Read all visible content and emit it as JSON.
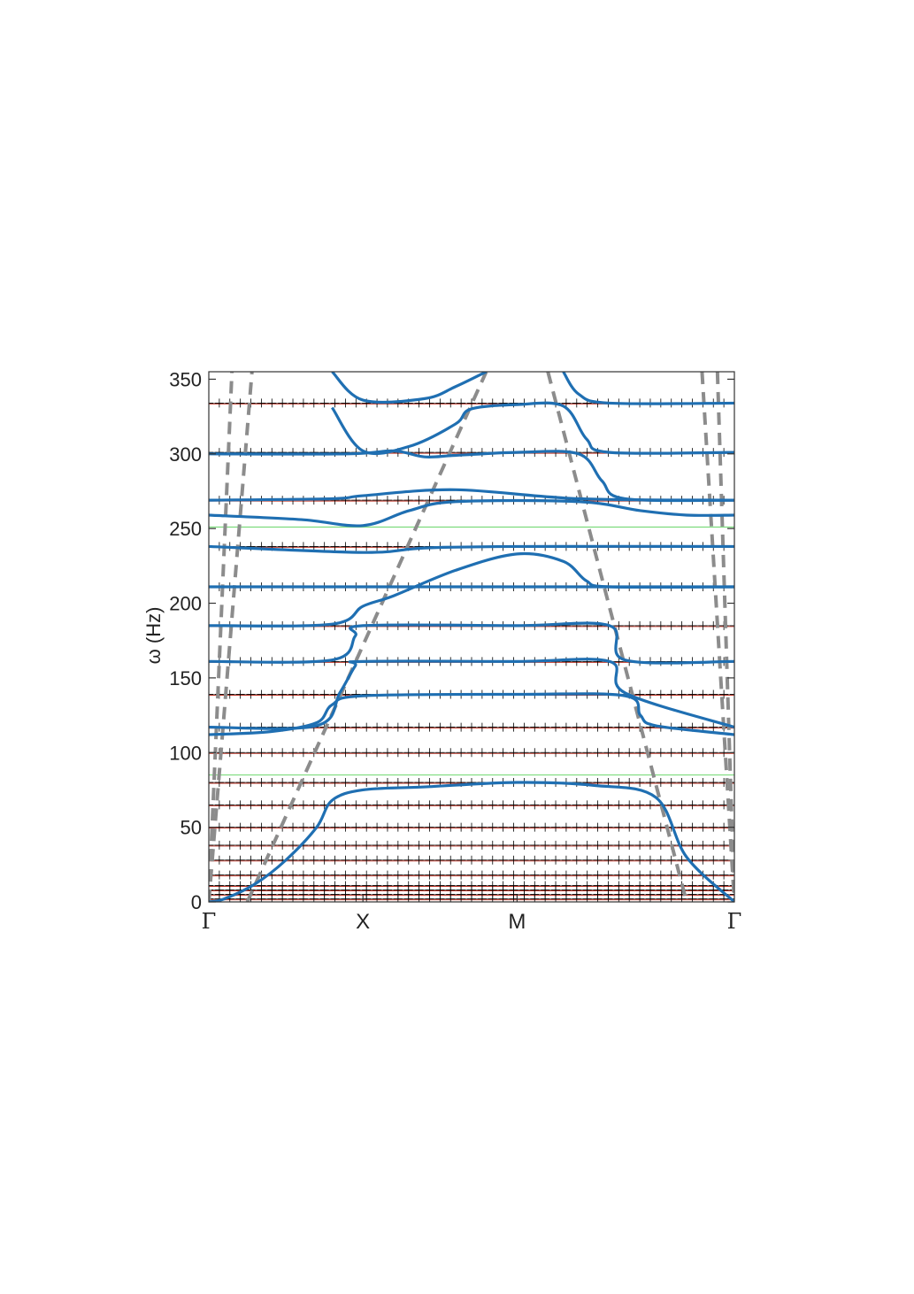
{
  "chart_data": {
    "type": "line",
    "title": "",
    "xlabel": "",
    "ylabel": "ω (Hz)",
    "ylim": [
      0,
      355
    ],
    "yticks": [
      0,
      50,
      100,
      150,
      200,
      250,
      300,
      350
    ],
    "x_path": {
      "points": [
        {
          "label": "Γ",
          "pos": 0.0
        },
        {
          "label": "X",
          "pos": 1.0
        },
        {
          "label": "M",
          "pos": 2.0
        },
        {
          "label": "Γ",
          "pos": 3.41
        }
      ],
      "range": [
        0,
        3.41
      ]
    },
    "colors": {
      "dispersion": "#1f6fb2",
      "flat_band": "#c0392b",
      "measured": "#000000",
      "asymptote": "#8c8c8c",
      "gap_edge": "#7ddc7d"
    },
    "flat_bands": [
      2,
      5,
      8,
      11,
      18,
      28,
      38,
      50,
      65,
      80,
      100,
      117,
      139,
      161,
      185,
      211,
      238,
      269,
      301,
      334
    ],
    "gap_edges": [
      85,
      251
    ],
    "series": [
      {
        "x": [
          0,
          0.1,
          0.3,
          0.5,
          0.7,
          0.8,
          1.0,
          1.4,
          2.0,
          2.5,
          2.9,
          3.1,
          3.41
        ],
        "y": [
          0,
          2,
          12,
          28,
          50,
          68,
          75,
          77,
          80,
          78,
          70,
          30,
          0
        ]
      },
      {
        "x": [
          0,
          0.4,
          0.7,
          0.8,
          1.0,
          2.0,
          2.7,
          2.8,
          2.9,
          3.41
        ],
        "y": [
          112,
          114,
          120,
          132,
          138,
          139,
          138,
          125,
          118,
          112
        ]
      },
      {
        "x": [
          0,
          0.7,
          0.85,
          0.95,
          1.0,
          2.0,
          2.6,
          2.7,
          3.41
        ],
        "y": [
          117,
          118,
          140,
          158,
          161,
          161,
          161,
          140,
          117
        ]
      },
      {
        "x": [
          0,
          0.8,
          0.95,
          1.0,
          2.0,
          2.6,
          2.7,
          3.41
        ],
        "y": [
          161,
          162,
          178,
          185,
          185,
          185,
          162,
          161
        ]
      },
      {
        "x": [
          0,
          0.8,
          1.0,
          1.2,
          1.6,
          2.0,
          2.3,
          2.45,
          2.6,
          3.41
        ],
        "y": [
          185,
          186,
          198,
          205,
          222,
          233,
          228,
          215,
          211,
          211
        ]
      },
      {
        "x": [
          0,
          1.0,
          2.0,
          3.41
        ],
        "y": [
          211,
          211,
          211,
          211
        ]
      },
      {
        "x": [
          0,
          1.0,
          1.4,
          2.0,
          3.41
        ],
        "y": [
          238,
          234,
          237,
          238,
          238
        ]
      },
      {
        "x": [
          0,
          0.6,
          1.0,
          1.3,
          1.6,
          2.4,
          2.8,
          3.1,
          3.41
        ],
        "y": [
          259,
          256,
          252,
          262,
          268,
          268,
          262,
          259,
          259
        ]
      },
      {
        "x": [
          0,
          0.8,
          1.0,
          1.6,
          2.4,
          3.41
        ],
        "y": [
          269,
          270,
          272,
          276,
          270,
          269
        ]
      },
      {
        "x": [
          0,
          0.9,
          1.2,
          1.4,
          1.6,
          2.0,
          2.4,
          2.55,
          2.7,
          3.41
        ],
        "y": [
          300,
          300,
          302,
          298,
          299,
          301,
          300,
          282,
          270,
          269
        ]
      },
      {
        "x": [
          0.8,
          1.0,
          1.3,
          1.6,
          1.7,
          2.0,
          2.3,
          2.45,
          2.6,
          3.41
        ],
        "y": [
          331,
          302,
          305,
          320,
          330,
          333,
          332,
          310,
          301,
          301
        ]
      },
      {
        "x": [
          0.8,
          1.0,
          1.4,
          1.6,
          1.8
        ],
        "y": [
          355,
          336,
          337,
          345,
          355
        ]
      },
      {
        "x": [
          2.3,
          2.4,
          2.6,
          3.41
        ],
        "y": [
          355,
          340,
          334,
          334
        ]
      }
    ],
    "asymptotes": [
      {
        "x": [
          0.0,
          0.15
        ],
        "y": [
          0,
          355
        ]
      },
      {
        "x": [
          0.0,
          0.28
        ],
        "y": [
          0,
          355
        ]
      },
      {
        "x": [
          0.25,
          1.8
        ],
        "y": [
          0,
          355
        ]
      },
      {
        "x": [
          2.2,
          3.1
        ],
        "y": [
          355,
          0
        ]
      },
      {
        "x": [
          3.2,
          3.41
        ],
        "y": [
          355,
          0
        ]
      },
      {
        "x": [
          3.3,
          3.41
        ],
        "y": [
          355,
          0
        ]
      }
    ]
  }
}
